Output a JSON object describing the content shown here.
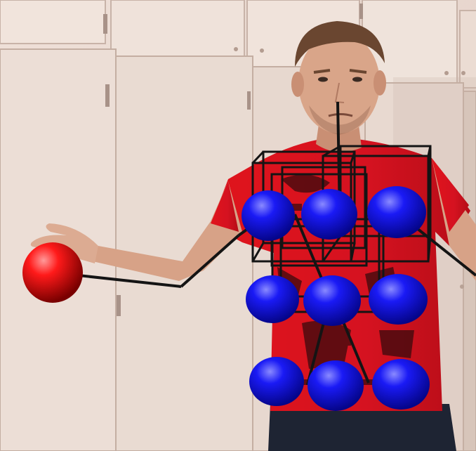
{
  "scene": {
    "description_free": true,
    "colors": {
      "wall": "#eadbd2",
      "wall_shadow": "#cdb9ad",
      "door_line": "#b9a59a",
      "shirt": "#d8141f",
      "shirt_dark": "#a80c14",
      "skin": "#d9a589",
      "skin_shadow": "#b98068",
      "hair": "#6a4630",
      "jeans": "#1f2634",
      "red_ball": "#ff1010",
      "blue_ball": "#1515f0",
      "skeleton": "#141414"
    },
    "objects": {
      "red_ball_label": "red-ball",
      "blue_ball_count": 9,
      "wireframe_box_count": 4
    }
  }
}
